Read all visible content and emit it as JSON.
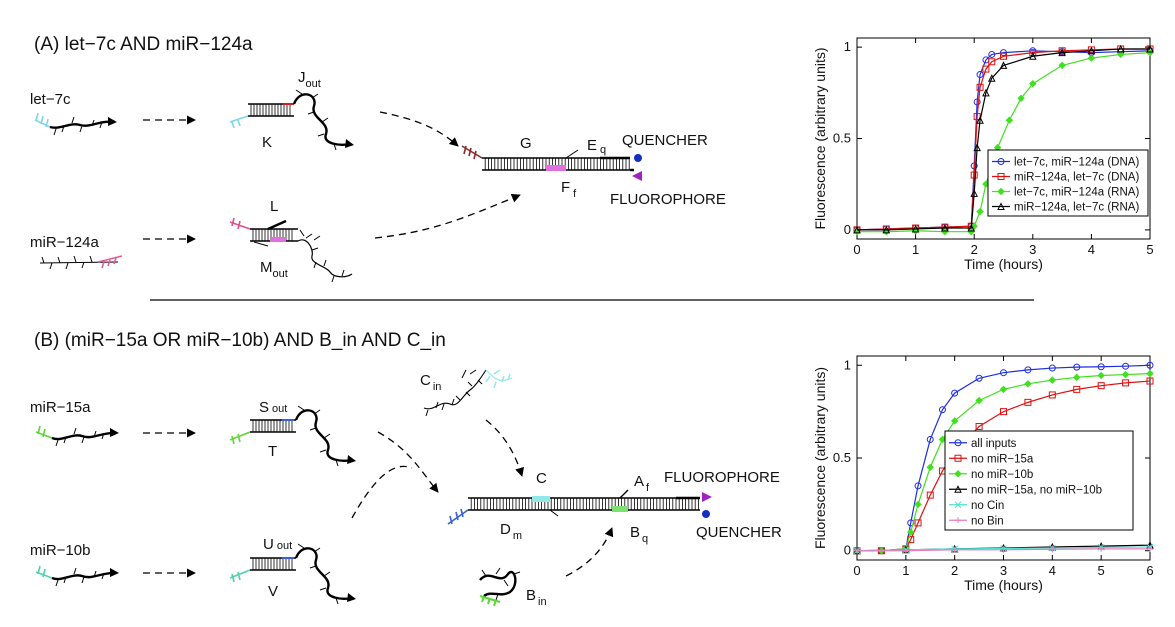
{
  "panel_a": {
    "title": "(A) let−7c AND miR−124a",
    "input1": "let−7c",
    "input2": "miR−124a",
    "gate1_top_main": "J",
    "gate1_top_sub": "out",
    "gate1_bottom": "K",
    "gate2_top": "L",
    "gate2_bottom_main": "M",
    "gate2_bottom_sub": "out",
    "reporter_g": "G",
    "reporter_e_main": "E",
    "reporter_e_sub": "q",
    "reporter_f_main": "F",
    "reporter_f_sub": "f",
    "quencher": "QUENCHER",
    "fluorophore": "FLUOROPHORE"
  },
  "panel_b": {
    "title": "(B) (miR−15a OR miR−10b) AND B_in AND C_in",
    "input1": "miR−15a",
    "input2": "miR−10b",
    "gate1_top_main": "S",
    "gate1_top_sub": "out",
    "gate1_bottom": "T",
    "gate2_top_main": "U",
    "gate2_top_sub": "out",
    "gate2_bottom": "V",
    "cin_main": "C",
    "cin_sub": "in",
    "bin_main": "B",
    "bin_sub": "in",
    "reporter_c": "C",
    "reporter_a_main": "A",
    "reporter_a_sub": "f",
    "reporter_d_main": "D",
    "reporter_d_sub": "m",
    "reporter_b_main": "B",
    "reporter_b_sub": "q",
    "fluorophore": "FLUOROPHORE",
    "quencher": "QUENCHER"
  },
  "colors": {
    "let7c": "#7fd6e8",
    "mir124a_left": "#e0508a",
    "mir124a_right": "#e05f9a",
    "mir15a": "#5cd63a",
    "mir10b": "#4fd1b0",
    "g_toehold": "#8b2a2a",
    "magenta_domain": "#e070e0",
    "red_domain": "#d02020",
    "blue_domain": "#3a5fd6",
    "cyan_domain": "#90e8e8",
    "green_domain": "#7ee070",
    "quencher_dot": "#1530c0",
    "fluorophore_tri": "#a020c0"
  },
  "chart_data": [
    {
      "type": "line",
      "xlabel": "Time (hours)",
      "ylabel": "Fluorescence (arbitrary units)",
      "xlim": [
        0,
        5
      ],
      "ylim": [
        -0.05,
        1.05
      ],
      "xticks": [
        "0",
        "1",
        "2",
        "3",
        "4",
        "5"
      ],
      "yticks": [
        "0",
        "0.5",
        "1"
      ],
      "legend_position": "right",
      "series": [
        {
          "name": "let−7c, miR−124a (DNA)",
          "color": "#1f2fe0",
          "marker": "circle",
          "x": [
            0,
            0.5,
            1,
            1.5,
            1.95,
            2.0,
            2.05,
            2.1,
            2.2,
            2.3,
            2.5,
            3,
            3.5,
            4,
            4.5,
            5
          ],
          "y": [
            0.0,
            0.005,
            0.01,
            0.015,
            0.02,
            0.35,
            0.7,
            0.85,
            0.93,
            0.96,
            0.97,
            0.98,
            0.975,
            0.97,
            0.975,
            0.98
          ]
        },
        {
          "name": "miR−124a, let−7c (DNA)",
          "color": "#e01010",
          "marker": "square",
          "x": [
            0,
            0.5,
            1,
            1.5,
            1.95,
            2.0,
            2.05,
            2.1,
            2.2,
            2.3,
            2.5,
            3,
            3.5,
            4,
            4.5,
            5
          ],
          "y": [
            0.0,
            0.005,
            0.01,
            0.015,
            0.02,
            0.3,
            0.62,
            0.78,
            0.88,
            0.92,
            0.95,
            0.97,
            0.98,
            0.985,
            0.99,
            0.99
          ]
        },
        {
          "name": "let−7c, miR−124a (RNA)",
          "color": "#40e020",
          "marker": "diamond",
          "x": [
            0,
            0.5,
            1,
            1.5,
            1.95,
            2.0,
            2.1,
            2.2,
            2.4,
            2.6,
            2.8,
            3,
            3.5,
            4,
            4.5,
            5
          ],
          "y": [
            -0.01,
            -0.01,
            -0.005,
            -0.01,
            -0.01,
            0.02,
            0.1,
            0.25,
            0.45,
            0.6,
            0.72,
            0.8,
            0.9,
            0.94,
            0.96,
            0.97
          ]
        },
        {
          "name": "miR−124a, let−7c (RNA)",
          "color": "#000000",
          "marker": "triangle",
          "x": [
            0,
            0.5,
            1,
            1.5,
            1.95,
            2.0,
            2.05,
            2.1,
            2.2,
            2.3,
            2.5,
            3,
            3.5,
            4,
            4.5,
            5
          ],
          "y": [
            0.0,
            0.0,
            0.005,
            0.01,
            0.01,
            0.2,
            0.45,
            0.6,
            0.75,
            0.83,
            0.9,
            0.95,
            0.97,
            0.98,
            0.99,
            0.99
          ]
        }
      ]
    },
    {
      "type": "line",
      "xlabel": "Time (hours)",
      "ylabel": "Fluorescence (arbitrary units)",
      "xlim": [
        0,
        6
      ],
      "ylim": [
        -0.05,
        1.05
      ],
      "xticks": [
        "0",
        "1",
        "2",
        "3",
        "4",
        "5",
        "6"
      ],
      "yticks": [
        "0",
        "0.5",
        "1"
      ],
      "legend_position": "center",
      "series": [
        {
          "name": "all inputs",
          "color": "#1f2fe0",
          "marker": "circle",
          "x": [
            0,
            0.5,
            1,
            1.1,
            1.25,
            1.5,
            1.75,
            2,
            2.5,
            3,
            3.5,
            4,
            4.5,
            5,
            5.5,
            6
          ],
          "y": [
            0,
            0,
            0.01,
            0.15,
            0.35,
            0.6,
            0.76,
            0.85,
            0.93,
            0.96,
            0.975,
            0.985,
            0.99,
            0.992,
            0.995,
            1.0
          ]
        },
        {
          "name": "no miR−15a",
          "color": "#e01010",
          "marker": "square",
          "x": [
            0,
            0.5,
            1,
            1.1,
            1.25,
            1.5,
            1.75,
            2,
            2.5,
            3,
            3.5,
            4,
            4.5,
            5,
            5.5,
            6
          ],
          "y": [
            0,
            0,
            0.01,
            0.06,
            0.15,
            0.3,
            0.43,
            0.53,
            0.67,
            0.75,
            0.8,
            0.84,
            0.87,
            0.89,
            0.905,
            0.915
          ]
        },
        {
          "name": "no miR−10b",
          "color": "#40e020",
          "marker": "diamond",
          "x": [
            0,
            0.5,
            1,
            1.1,
            1.25,
            1.5,
            1.75,
            2,
            2.5,
            3,
            3.5,
            4,
            4.5,
            5,
            5.5,
            6
          ],
          "y": [
            0,
            0,
            0.01,
            0.1,
            0.25,
            0.45,
            0.6,
            0.7,
            0.81,
            0.87,
            0.9,
            0.92,
            0.935,
            0.945,
            0.95,
            0.955
          ]
        },
        {
          "name": "no miR−15a, no miR−10b",
          "color": "#000000",
          "marker": "triangle",
          "x": [
            0,
            1,
            2,
            3,
            4,
            5,
            6
          ],
          "y": [
            0,
            0.005,
            0.01,
            0.015,
            0.02,
            0.025,
            0.03
          ]
        },
        {
          "name": "no Cin",
          "color": "#50e0d0",
          "marker": "x",
          "x": [
            0,
            1,
            2,
            3,
            4,
            5,
            6
          ],
          "y": [
            0,
            0.005,
            0.01,
            0.012,
            0.015,
            0.018,
            0.02
          ]
        },
        {
          "name": "no Bin",
          "color": "#e080c0",
          "marker": "plus",
          "x": [
            0,
            1,
            2,
            3,
            4,
            5,
            6
          ],
          "y": [
            0,
            0.0,
            0.005,
            0.005,
            0.008,
            0.01,
            0.01
          ]
        }
      ]
    }
  ]
}
